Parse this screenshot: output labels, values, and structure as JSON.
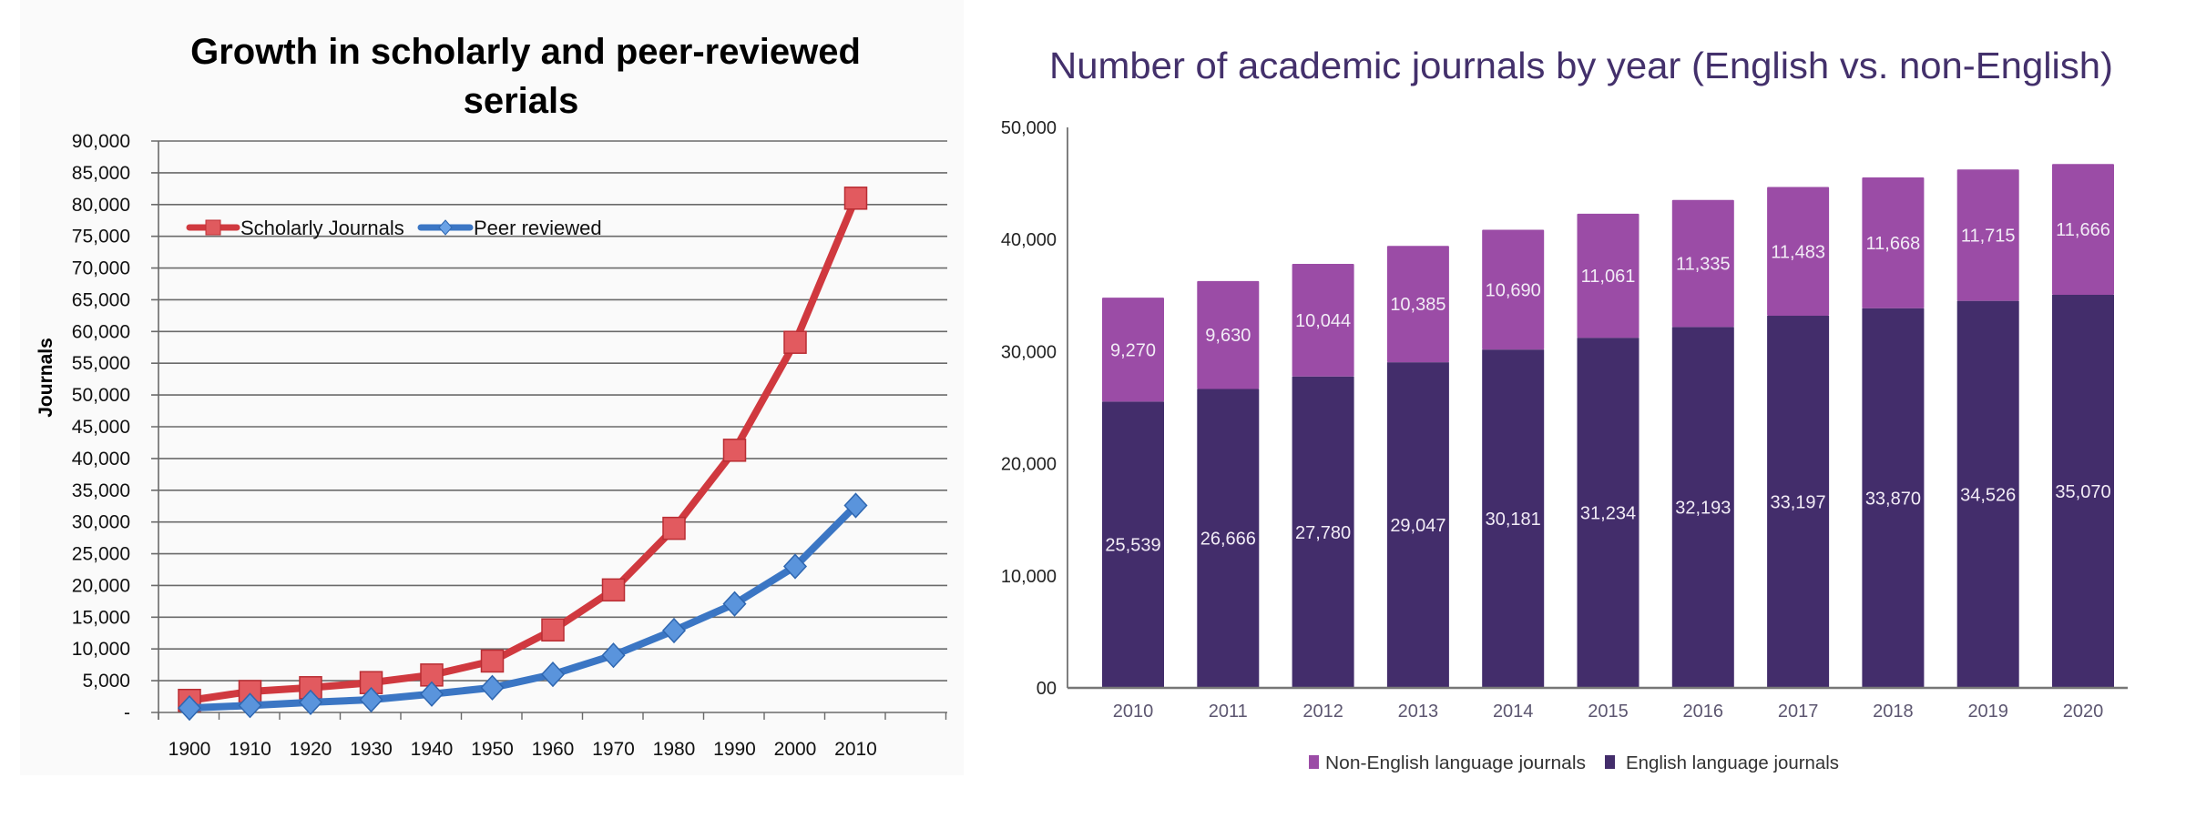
{
  "chart_data": [
    {
      "type": "line",
      "title": "Growth in scholarly and peer-reviewed serials",
      "title_lines": [
        "Growth in scholarly and peer-reviewed",
        "serials"
      ],
      "xlabel": "",
      "ylabel": "Journals",
      "x": [
        "1900",
        "1910",
        "1920",
        "1930",
        "1940",
        "1950",
        "1960",
        "1970",
        "1980",
        "1990",
        "2000",
        "2010"
      ],
      "ylim": [
        0,
        90000
      ],
      "ytick_step": 5000,
      "yticks": [
        "-",
        "5,000",
        "10,000",
        "15,000",
        "20,000",
        "25,000",
        "30,000",
        "35,000",
        "40,000",
        "45,000",
        "50,000",
        "55,000",
        "60,000",
        "65,000",
        "70,000",
        "75,000",
        "80,000",
        "85,000",
        "90,000"
      ],
      "grid": true,
      "legend_position": "top-left",
      "series": [
        {
          "name": "Scholarly Journals",
          "color": "#d0393f",
          "marker": "square",
          "values": [
            1900,
            3300,
            3900,
            4700,
            5900,
            8100,
            13000,
            19300,
            29000,
            41300,
            58300,
            81000
          ]
        },
        {
          "name": "Peer reviewed",
          "color": "#3b76c4",
          "marker": "diamond",
          "values": [
            700,
            1100,
            1600,
            2000,
            2900,
            3900,
            6000,
            9000,
            12900,
            17100,
            23000,
            32600
          ]
        }
      ]
    },
    {
      "type": "bar",
      "stacked": true,
      "title": "Number of academic journals by year (English vs. non-English)",
      "xlabel": "",
      "ylabel": "",
      "categories": [
        "2010",
        "2011",
        "2012",
        "2013",
        "2014",
        "2015",
        "2016",
        "2017",
        "2018",
        "2019",
        "2020"
      ],
      "ylim": [
        0,
        50000
      ],
      "yticks": [
        "00",
        "10,000",
        "20,000",
        "30,000",
        "40,000",
        "50,000"
      ],
      "ytick_values": [
        0,
        10000,
        20000,
        30000,
        40000,
        50000
      ],
      "grid": false,
      "legend_position": "bottom",
      "series": [
        {
          "name": "English language journals",
          "color": "#432d6b",
          "values": [
            25539,
            26666,
            27780,
            29047,
            30181,
            31234,
            32193,
            33197,
            33870,
            34526,
            35070
          ],
          "labels": [
            "25,539",
            "26,666",
            "27,780",
            "29,047",
            "30,181",
            "31,234",
            "32,193",
            "33,197",
            "33,870",
            "34,526",
            "35,070"
          ]
        },
        {
          "name": "Non-English language journals",
          "color": "#9b4ca6",
          "values": [
            9270,
            9630,
            10044,
            10385,
            10690,
            11061,
            11335,
            11483,
            11668,
            11715,
            11666
          ],
          "labels": [
            "9,270",
            "9,630",
            "10,044",
            "10,385",
            "10,690",
            "11,061",
            "11,335",
            "11,483",
            "11,668",
            "11,715",
            "11,666"
          ]
        }
      ],
      "legend": [
        "Non-English language journals",
        "English language journals"
      ]
    }
  ]
}
